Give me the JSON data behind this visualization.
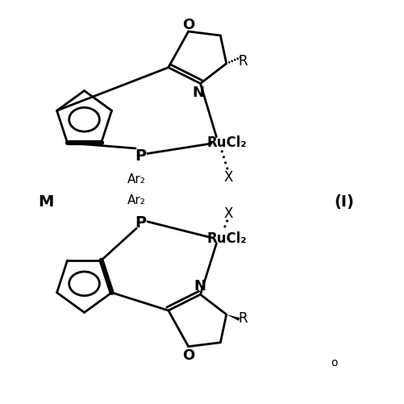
{
  "background_color": "#ffffff",
  "line_color": "#000000",
  "lw": 2.0,
  "blw": 4.5,
  "figsize": [
    5.02,
    5.02
  ],
  "dpi": 100,
  "xlim": [
    0,
    10
  ],
  "ylim": [
    0,
    10
  ],
  "label_I": "(I)",
  "label_M": "M",
  "label_o": "o"
}
